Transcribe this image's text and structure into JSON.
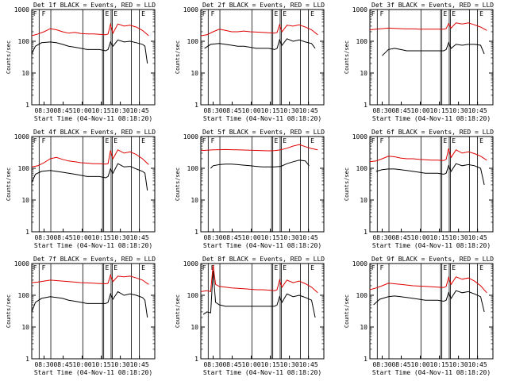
{
  "figure": {
    "ylabel": "Counts/sec",
    "xlabel": "Start Time (04-Nov-11 08:18:20)",
    "x_tick_labels": [
      "08:30",
      "08:45",
      "10:00",
      "10:15",
      "10:30",
      "10:45"
    ],
    "y_tick_labels": [
      "1",
      "10",
      "100",
      "1000"
    ]
  },
  "colors": {
    "events": "#000000",
    "lld": "#e00000",
    "background": "#ffffff"
  },
  "chart_data": [
    {
      "type": "line",
      "title": "Det 1f BLACK = Events, RED = LLD",
      "ylim": [
        1,
        1000
      ],
      "yscale": "log",
      "x_ticks": [
        "08:30",
        "08:45",
        "10:00",
        "10:15",
        "10:30",
        "10:45"
      ],
      "markers": [
        "F",
        "F",
        "E",
        "E",
        "E"
      ],
      "series": [
        {
          "name": "Events",
          "color": "#000000",
          "x": [
            0,
            3,
            8,
            15,
            20,
            25,
            30,
            35,
            40,
            45,
            50,
            55,
            60,
            62,
            64,
            66,
            70,
            75,
            80,
            85,
            90,
            92,
            94
          ],
          "values": [
            40,
            70,
            90,
            95,
            90,
            80,
            70,
            65,
            60,
            55,
            55,
            55,
            50,
            55,
            95,
            70,
            110,
            95,
            100,
            90,
            80,
            70,
            20
          ]
        },
        {
          "name": "LLD",
          "color": "#e00000",
          "x": [
            0,
            5,
            10,
            15,
            20,
            25,
            30,
            35,
            40,
            45,
            50,
            55,
            60,
            62,
            64,
            66,
            70,
            75,
            80,
            85,
            90,
            95
          ],
          "values": [
            150,
            170,
            200,
            250,
            230,
            200,
            180,
            190,
            175,
            170,
            170,
            165,
            160,
            170,
            340,
            180,
            350,
            300,
            320,
            280,
            220,
            150
          ]
        }
      ]
    },
    {
      "type": "line",
      "title": "Det 2f BLACK = Events, RED = LLD",
      "ylim": [
        1,
        1000
      ],
      "yscale": "log",
      "x_ticks": [
        "08:30",
        "08:45",
        "10:00",
        "10:15",
        "10:30",
        "10:45"
      ],
      "markers": [
        "F",
        "F",
        "E",
        "E",
        "E"
      ],
      "series": [
        {
          "name": "Events",
          "color": "#000000",
          "x": [
            3,
            8,
            15,
            20,
            25,
            30,
            35,
            40,
            45,
            50,
            55,
            60,
            62,
            64,
            66,
            70,
            75,
            80,
            85,
            90,
            93
          ],
          "values": [
            60,
            80,
            85,
            80,
            75,
            70,
            70,
            65,
            60,
            60,
            60,
            55,
            60,
            110,
            75,
            120,
            100,
            110,
            95,
            85,
            60
          ]
        },
        {
          "name": "LLD",
          "color": "#e00000",
          "x": [
            0,
            5,
            10,
            15,
            20,
            25,
            30,
            35,
            40,
            45,
            50,
            55,
            60,
            62,
            64,
            66,
            70,
            75,
            80,
            85,
            90,
            95
          ],
          "values": [
            150,
            160,
            200,
            240,
            220,
            200,
            200,
            210,
            200,
            195,
            190,
            185,
            180,
            190,
            330,
            200,
            320,
            300,
            330,
            280,
            230,
            160
          ]
        }
      ]
    },
    {
      "type": "line",
      "title": "Det 3f BLACK = Events, RED = LLD",
      "ylim": [
        1,
        1000
      ],
      "yscale": "log",
      "x_ticks": [
        "08:30",
        "08:45",
        "10:00",
        "10:15",
        "10:30",
        "10:45"
      ],
      "markers": [
        "F",
        "F",
        "E",
        "E",
        "E"
      ],
      "series": [
        {
          "name": "Events",
          "color": "#000000",
          "x": [
            10,
            15,
            20,
            25,
            30,
            35,
            40,
            45,
            50,
            55,
            60,
            62,
            64,
            66,
            70,
            75,
            80,
            85,
            90,
            93
          ],
          "values": [
            35,
            55,
            60,
            55,
            50,
            50,
            50,
            50,
            50,
            50,
            50,
            55,
            90,
            60,
            80,
            75,
            80,
            80,
            75,
            40
          ]
        },
        {
          "name": "LLD",
          "color": "#e00000",
          "x": [
            0,
            5,
            10,
            15,
            20,
            25,
            30,
            35,
            40,
            45,
            50,
            55,
            60,
            62,
            64,
            66,
            70,
            75,
            80,
            85,
            90,
            95
          ],
          "values": [
            230,
            240,
            250,
            260,
            255,
            250,
            245,
            245,
            240,
            240,
            240,
            240,
            240,
            250,
            360,
            260,
            380,
            350,
            380,
            330,
            280,
            220
          ]
        }
      ]
    },
    {
      "type": "line",
      "title": "Det 4f BLACK = Events, RED = LLD",
      "ylim": [
        1,
        1000
      ],
      "yscale": "log",
      "x_ticks": [
        "08:30",
        "08:45",
        "10:00",
        "10:15",
        "10:30",
        "10:45"
      ],
      "markers": [
        "F",
        "F",
        "E",
        "E",
        "E"
      ],
      "series": [
        {
          "name": "Events",
          "color": "#000000",
          "x": [
            0,
            3,
            8,
            15,
            20,
            25,
            30,
            35,
            40,
            45,
            50,
            55,
            60,
            62,
            64,
            66,
            70,
            75,
            80,
            85,
            90,
            92,
            94
          ],
          "values": [
            35,
            65,
            80,
            85,
            80,
            75,
            70,
            65,
            60,
            55,
            55,
            55,
            50,
            55,
            95,
            70,
            140,
            110,
            115,
            95,
            80,
            70,
            20
          ]
        },
        {
          "name": "LLD",
          "color": "#e00000",
          "x": [
            0,
            5,
            10,
            15,
            20,
            25,
            30,
            35,
            40,
            45,
            50,
            55,
            60,
            62,
            64,
            66,
            70,
            75,
            80,
            85,
            90,
            95
          ],
          "values": [
            110,
            120,
            150,
            200,
            220,
            190,
            170,
            160,
            150,
            145,
            140,
            140,
            135,
            140,
            360,
            200,
            380,
            300,
            330,
            270,
            200,
            130
          ]
        }
      ]
    },
    {
      "type": "line",
      "title": "Det 5f BLACK = Events, RED = LLD",
      "ylim": [
        1,
        1000
      ],
      "yscale": "log",
      "x_ticks": [
        "08:30",
        "08:45",
        "10:00",
        "10:15",
        "10:30",
        "10:45"
      ],
      "markers": [
        "F",
        "F",
        "E",
        "E",
        "E"
      ],
      "series": [
        {
          "name": "Events",
          "color": "#000000",
          "x": [
            8,
            10,
            15,
            20,
            25,
            30,
            35,
            40,
            45,
            50,
            55,
            60,
            65,
            70,
            75,
            80,
            85,
            88
          ],
          "values": [
            100,
            120,
            130,
            135,
            135,
            130,
            125,
            120,
            115,
            110,
            110,
            110,
            115,
            140,
            160,
            180,
            170,
            120
          ]
        },
        {
          "name": "LLD",
          "color": "#e00000",
          "x": [
            0,
            5,
            10,
            15,
            20,
            25,
            30,
            35,
            40,
            45,
            50,
            55,
            60,
            65,
            70,
            75,
            80,
            85,
            90,
            95
          ],
          "values": [
            360,
            370,
            380,
            385,
            390,
            385,
            380,
            375,
            370,
            365,
            360,
            355,
            360,
            380,
            430,
            500,
            560,
            480,
            420,
            380
          ]
        }
      ]
    },
    {
      "type": "line",
      "title": "Det 6f BLACK = Events, RED = LLD",
      "ylim": [
        1,
        1000
      ],
      "yscale": "log",
      "x_ticks": [
        "08:30",
        "08:45",
        "10:00",
        "10:15",
        "10:30",
        "10:45"
      ],
      "markers": [
        "F",
        "F",
        "E",
        "E",
        "E"
      ],
      "series": [
        {
          "name": "Events",
          "color": "#000000",
          "x": [
            5,
            10,
            15,
            20,
            25,
            30,
            35,
            40,
            45,
            50,
            55,
            60,
            62,
            64,
            66,
            70,
            75,
            80,
            85,
            90,
            93
          ],
          "values": [
            80,
            90,
            95,
            95,
            90,
            85,
            80,
            75,
            70,
            70,
            70,
            65,
            70,
            120,
            80,
            140,
            120,
            130,
            120,
            100,
            30
          ]
        },
        {
          "name": "LLD",
          "color": "#e00000",
          "x": [
            0,
            5,
            10,
            15,
            20,
            25,
            30,
            35,
            40,
            45,
            50,
            55,
            60,
            62,
            64,
            66,
            70,
            75,
            80,
            85,
            90,
            95
          ],
          "values": [
            160,
            170,
            200,
            240,
            230,
            210,
            200,
            200,
            190,
            185,
            180,
            180,
            175,
            190,
            420,
            220,
            380,
            300,
            330,
            290,
            240,
            180
          ]
        }
      ]
    },
    {
      "type": "line",
      "title": "Det 7f BLACK = Events, RED = LLD",
      "ylim": [
        1,
        1000
      ],
      "yscale": "log",
      "x_ticks": [
        "08:30",
        "08:45",
        "10:00",
        "10:15",
        "10:30",
        "10:45"
      ],
      "markers": [
        "F",
        "F",
        "E",
        "E",
        "E"
      ],
      "series": [
        {
          "name": "Events",
          "color": "#000000",
          "x": [
            0,
            3,
            8,
            15,
            20,
            25,
            30,
            35,
            40,
            45,
            50,
            55,
            60,
            62,
            64,
            66,
            70,
            75,
            80,
            85,
            90,
            92,
            94
          ],
          "values": [
            30,
            60,
            80,
            90,
            85,
            80,
            70,
            65,
            60,
            55,
            55,
            55,
            55,
            60,
            110,
            75,
            130,
            100,
            110,
            100,
            85,
            70,
            20
          ]
        },
        {
          "name": "LLD",
          "color": "#e00000",
          "x": [
            0,
            5,
            10,
            15,
            20,
            25,
            30,
            35,
            40,
            45,
            50,
            55,
            60,
            62,
            64,
            66,
            70,
            75,
            80,
            85,
            90,
            95
          ],
          "values": [
            250,
            260,
            280,
            300,
            290,
            280,
            270,
            260,
            250,
            245,
            240,
            235,
            230,
            240,
            430,
            270,
            400,
            380,
            400,
            350,
            300,
            220
          ]
        }
      ]
    },
    {
      "type": "line",
      "title": "Det 8f BLACK = Events, RED = LLD",
      "ylim": [
        1,
        1000
      ],
      "yscale": "log",
      "x_ticks": [
        "08:30",
        "08:45",
        "10:00",
        "10:15",
        "10:30",
        "10:45"
      ],
      "markers": [
        "F",
        "F",
        "E",
        "E",
        "E"
      ],
      "series": [
        {
          "name": "Events",
          "color": "#000000",
          "x": [
            2,
            5,
            8,
            10,
            12,
            15,
            20,
            25,
            30,
            35,
            40,
            45,
            50,
            55,
            60,
            62,
            64,
            66,
            70,
            75,
            80,
            85,
            90,
            93
          ],
          "values": [
            25,
            30,
            28,
            600,
            60,
            50,
            45,
            45,
            45,
            45,
            45,
            45,
            45,
            45,
            45,
            50,
            90,
            60,
            110,
            90,
            100,
            85,
            70,
            20
          ]
        },
        {
          "name": "LLD",
          "color": "#e00000",
          "x": [
            0,
            5,
            8,
            10,
            12,
            15,
            20,
            25,
            30,
            35,
            40,
            45,
            50,
            55,
            60,
            62,
            64,
            66,
            70,
            75,
            80,
            85,
            90,
            95
          ],
          "values": [
            130,
            140,
            130,
            900,
            220,
            190,
            180,
            170,
            165,
            160,
            155,
            150,
            150,
            145,
            140,
            150,
            300,
            180,
            300,
            250,
            280,
            230,
            180,
            120
          ]
        }
      ]
    },
    {
      "type": "line",
      "title": "Det 9f BLACK = Events, RED = LLD",
      "ylim": [
        1,
        1000
      ],
      "yscale": "log",
      "x_ticks": [
        "08:30",
        "08:45",
        "10:00",
        "10:15",
        "10:30",
        "10:45"
      ],
      "markers": [
        "F",
        "F",
        "E",
        "E",
        "E"
      ],
      "series": [
        {
          "name": "Events",
          "color": "#000000",
          "x": [
            3,
            8,
            15,
            20,
            25,
            30,
            35,
            40,
            45,
            50,
            55,
            60,
            62,
            64,
            66,
            70,
            75,
            80,
            85,
            90,
            93
          ],
          "values": [
            50,
            75,
            90,
            95,
            90,
            85,
            80,
            75,
            70,
            70,
            70,
            65,
            70,
            120,
            80,
            140,
            120,
            130,
            110,
            90,
            30
          ]
        },
        {
          "name": "LLD",
          "color": "#e00000",
          "x": [
            0,
            5,
            10,
            15,
            20,
            25,
            30,
            35,
            40,
            45,
            50,
            55,
            60,
            62,
            64,
            66,
            70,
            75,
            80,
            85,
            90,
            95
          ],
          "values": [
            150,
            170,
            200,
            240,
            230,
            220,
            210,
            200,
            195,
            190,
            185,
            180,
            175,
            190,
            360,
            220,
            380,
            320,
            350,
            280,
            200,
            120
          ]
        }
      ]
    }
  ]
}
